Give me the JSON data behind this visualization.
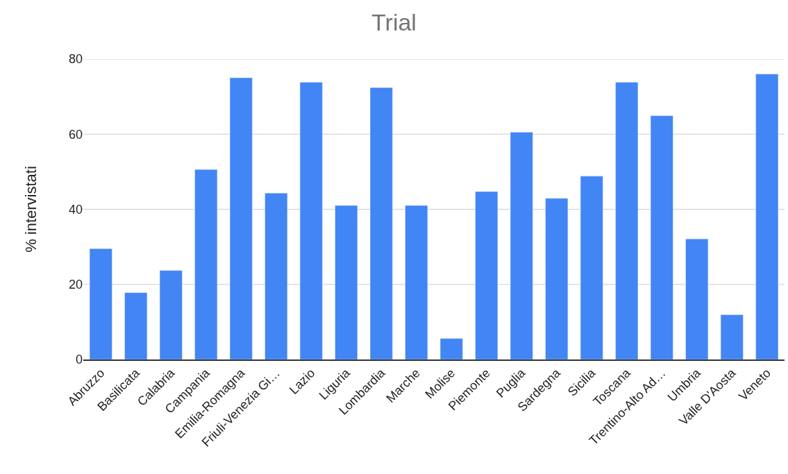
{
  "chart_data": {
    "type": "bar",
    "title": "Trial",
    "ylabel": "% intervistati",
    "categories": [
      "Abruzzo",
      "Basilicata",
      "Calabria",
      "Campania",
      "Emilia-Romagna",
      "Friuli-Venezia Gi…",
      "Lazio",
      "Liguria",
      "Lombardia",
      "Marche",
      "Molise",
      "Piemonte",
      "Puglia",
      "Sardegna",
      "Sicilia",
      "Toscana",
      "Trentino-Alto Ad…",
      "Umbria",
      "Valle D'Aosta",
      "Veneto"
    ],
    "values": [
      29.5,
      17.8,
      23.7,
      50.6,
      75,
      44.3,
      73.8,
      41,
      72.4,
      41,
      5.6,
      44.7,
      60.5,
      42.9,
      48.8,
      73.8,
      64.9,
      32.1,
      11.9,
      76
    ],
    "color": "#4285f4",
    "ylim": [
      0,
      80
    ],
    "yticks": [
      0,
      20,
      40,
      60,
      80
    ],
    "grid": "y"
  }
}
